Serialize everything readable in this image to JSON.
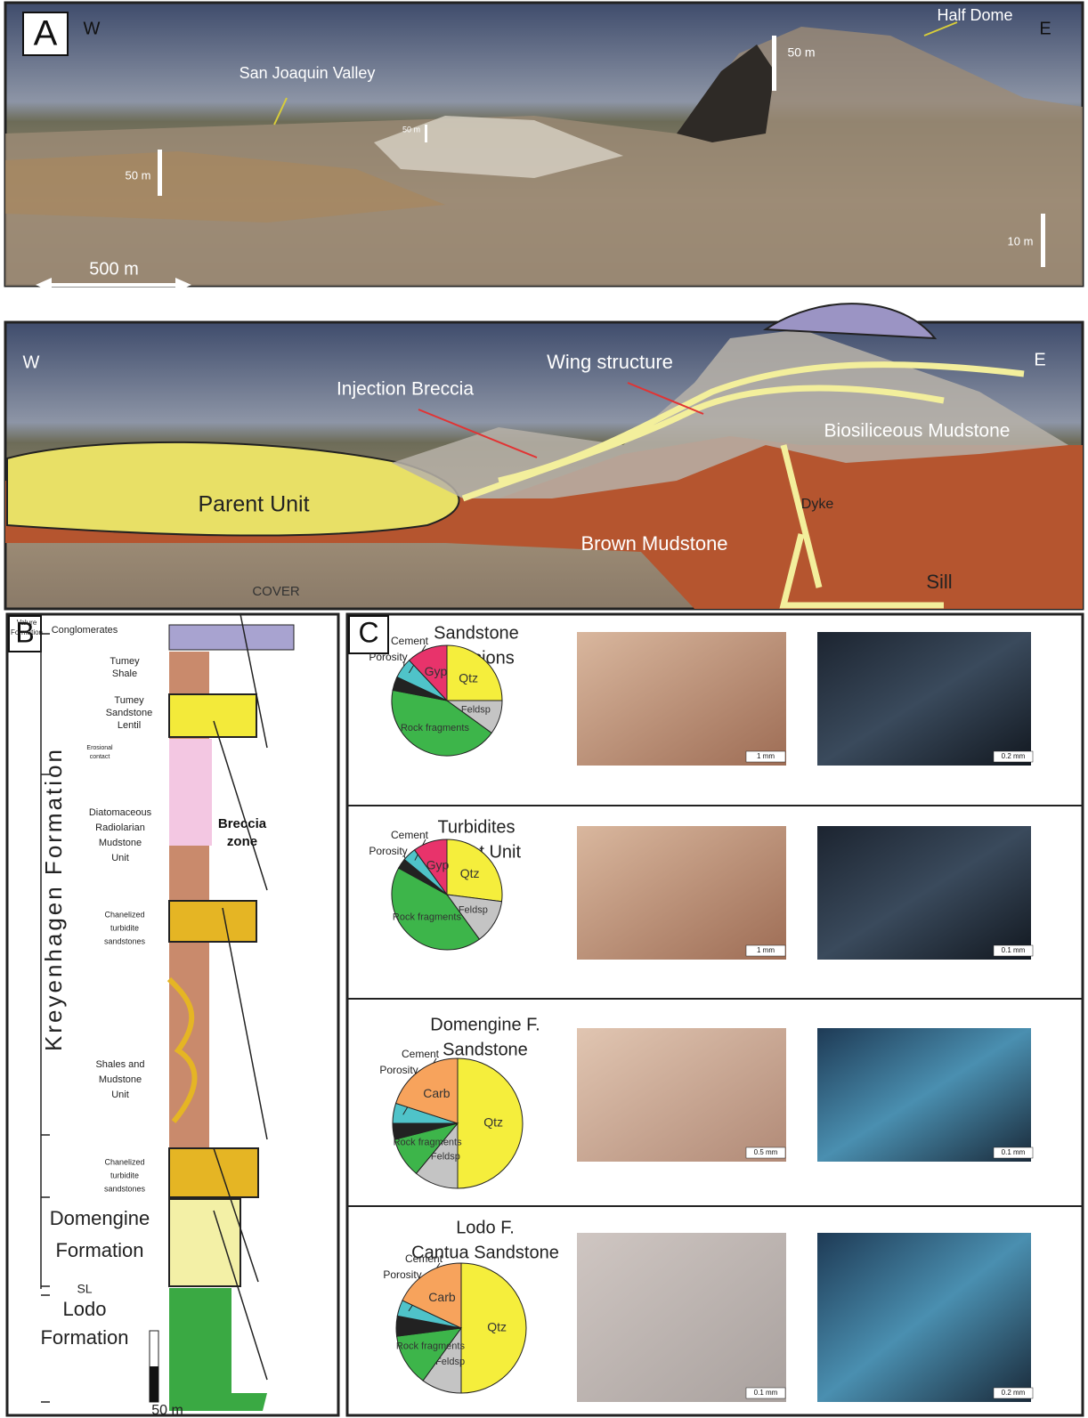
{
  "panel_a": {
    "label": "A",
    "west": "W",
    "east": "E",
    "half_dome": "Half Dome",
    "valley": "San Joaquin Valley",
    "scale_50m_left": "50 m",
    "scale_50m_center": "50 m",
    "scale_50m_dome": "50 m",
    "scale_10m": "10 m",
    "scale_500m": "500 m"
  },
  "panel_a_sketch": {
    "west": "W",
    "east": "E",
    "wing_structure": "Wing structure",
    "injection_breccia": "Injection Breccia",
    "biosiliceous_mudstone": "Biosiliceous Mudstone",
    "parent_unit": "Parent Unit",
    "dyke": "Dyke",
    "brown_mudstone": "Brown Mudstone",
    "cover": "COVER",
    "sill": "Sill"
  },
  "panel_b": {
    "label": "B",
    "valure_formation": [
      "Valure",
      "Formation"
    ],
    "conglomerates": "Conglomerates",
    "tumey_shale": [
      "Tumey",
      "Shale"
    ],
    "tumey_sandstone": [
      "Tumey",
      "Sandstone",
      "Lentil"
    ],
    "erosional_contact": [
      "Erosional",
      "contact"
    ],
    "diatomaceous": [
      "Diatomaceous",
      "Radiolarian",
      "Mudstone",
      "Unit"
    ],
    "breccia_zone": [
      "Breccia",
      "zone"
    ],
    "channel_upper": [
      "Chanelized",
      "turbidite",
      "sandstones"
    ],
    "shales": [
      "Shales and",
      "Mudstone",
      "Unit"
    ],
    "channel_lower": [
      "Chanelized",
      "turbidite",
      "sandstones"
    ],
    "kreyenhagen": "Kreyenhagen Formation",
    "domengine": [
      "Domengine",
      "Formation"
    ],
    "sl": "SL",
    "lodo": [
      "Lodo",
      "Formation"
    ],
    "scale": "50 m"
  },
  "panel_c": {
    "label": "C",
    "rows": [
      {
        "title": [
          "Sandstone",
          "intrusions"
        ],
        "pie": {
          "type": "pie",
          "components": [
            {
              "name": "Qtz",
              "value": 25,
              "color": "#f5ee3c"
            },
            {
              "name": "Feldsp",
              "value": 10,
              "color": "#c4c4c4"
            },
            {
              "name": "Rock fragments",
              "value": 43,
              "color": "#3db54a"
            },
            {
              "name": "Porosity",
              "value": 4,
              "color": "#222222"
            },
            {
              "name": "Cement",
              "value": 6,
              "color": "#4fc3c9"
            },
            {
              "name": "Gyp",
              "value": 12,
              "color": "#e8336b"
            }
          ]
        },
        "scales": [
          "1 mm",
          "0.2 mm"
        ]
      },
      {
        "title": [
          "Turbidites",
          "Parent Unit"
        ],
        "pie": {
          "type": "pie",
          "components": [
            {
              "name": "Qtz",
              "value": 27,
              "color": "#f5ee3c"
            },
            {
              "name": "Feldsp",
              "value": 13,
              "color": "#c4c4c4"
            },
            {
              "name": "Rock fragments",
              "value": 43,
              "color": "#3db54a"
            },
            {
              "name": "Porosity",
              "value": 3,
              "color": "#222222"
            },
            {
              "name": "Cement",
              "value": 4,
              "color": "#4fc3c9"
            },
            {
              "name": "Gyp",
              "value": 10,
              "color": "#e8336b"
            }
          ]
        },
        "scales": [
          "1 mm",
          "0.1 mm"
        ]
      },
      {
        "title": [
          "Domengine F.",
          "Sandstone"
        ],
        "pie": {
          "type": "pie",
          "components": [
            {
              "name": "Qtz",
              "value": 50,
              "color": "#f5ee3c"
            },
            {
              "name": "Feldsp",
              "value": 11,
              "color": "#c4c4c4"
            },
            {
              "name": "Rock fragments",
              "value": 10,
              "color": "#3db54a"
            },
            {
              "name": "Porosity",
              "value": 4,
              "color": "#222222"
            },
            {
              "name": "Cement",
              "value": 5,
              "color": "#4fc3c9"
            },
            {
              "name": "Carb",
              "value": 20,
              "color": "#f7a35c"
            }
          ]
        },
        "scales": [
          "0.5 mm",
          "0.1 mm"
        ]
      },
      {
        "title": [
          "Lodo F.",
          "Cantua Sandstone"
        ],
        "pie": {
          "type": "pie",
          "components": [
            {
              "name": "Qtz",
              "value": 50,
              "color": "#f5ee3c"
            },
            {
              "name": "Feldsp",
              "value": 10,
              "color": "#c4c4c4"
            },
            {
              "name": "Rock fragments",
              "value": 13,
              "color": "#3db54a"
            },
            {
              "name": "Porosity",
              "value": 5,
              "color": "#222222"
            },
            {
              "name": "Cement",
              "value": 4,
              "color": "#4fc3c9"
            },
            {
              "name": "Carb",
              "value": 18,
              "color": "#f7a35c"
            }
          ]
        },
        "scales": [
          "0.1 mm",
          "0.2 mm"
        ]
      }
    ]
  }
}
